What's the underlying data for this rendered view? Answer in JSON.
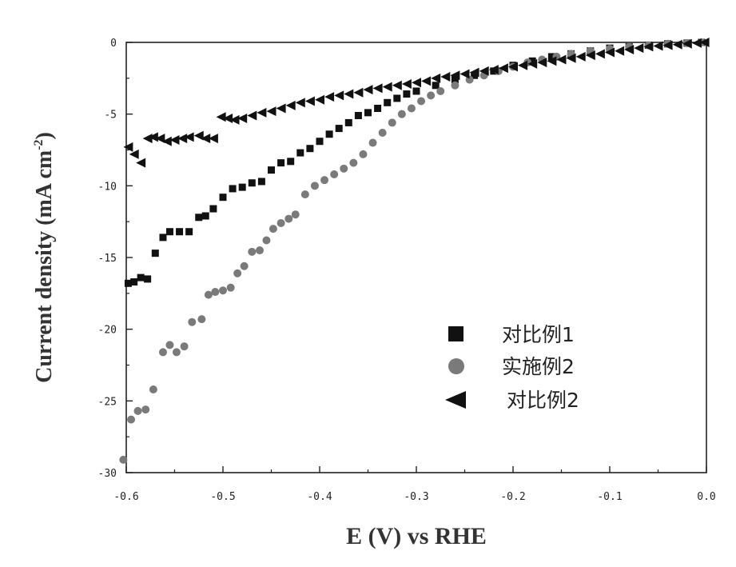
{
  "chart_data": {
    "type": "scatter",
    "title": "",
    "xlabel": "E (V) vs RHE",
    "ylabel": "Current density (mA cm",
    "ylabel_sup": "-2",
    "ylabel_close": ")",
    "xlim": [
      -0.6,
      0.0
    ],
    "ylim": [
      -30,
      0
    ],
    "x_ticks": [
      -0.6,
      -0.5,
      -0.4,
      -0.3,
      -0.2,
      -0.1,
      0.0
    ],
    "x_tick_labels": [
      "-0.6",
      "-0.5",
      "-0.4",
      "-0.3",
      "-0.2",
      "-0.1",
      "0.0"
    ],
    "y_ticks": [
      0,
      -5,
      -10,
      -15,
      -20,
      -25,
      -30
    ],
    "y_tick_labels": [
      "0",
      "-5",
      "-10",
      "-15",
      "-20",
      "-25",
      "-30"
    ],
    "legend_position": "bottom-right",
    "series": [
      {
        "name": "对比例1",
        "marker": "square",
        "color": "#111111",
        "points": [
          [
            -0.598,
            -16.8
          ],
          [
            -0.592,
            -16.7
          ],
          [
            -0.585,
            -16.4
          ],
          [
            -0.578,
            -16.5
          ],
          [
            -0.57,
            -14.7
          ],
          [
            -0.562,
            -13.6
          ],
          [
            -0.555,
            -13.2
          ],
          [
            -0.545,
            -13.2
          ],
          [
            -0.535,
            -13.2
          ],
          [
            -0.525,
            -12.2
          ],
          [
            -0.518,
            -12.1
          ],
          [
            -0.51,
            -11.6
          ],
          [
            -0.5,
            -10.8
          ],
          [
            -0.49,
            -10.2
          ],
          [
            -0.48,
            -10.1
          ],
          [
            -0.47,
            -9.8
          ],
          [
            -0.46,
            -9.7
          ],
          [
            -0.45,
            -8.9
          ],
          [
            -0.44,
            -8.4
          ],
          [
            -0.43,
            -8.3
          ],
          [
            -0.42,
            -7.7
          ],
          [
            -0.41,
            -7.4
          ],
          [
            -0.4,
            -6.9
          ],
          [
            -0.39,
            -6.4
          ],
          [
            -0.38,
            -6.0
          ],
          [
            -0.37,
            -5.6
          ],
          [
            -0.36,
            -5.1
          ],
          [
            -0.35,
            -4.9
          ],
          [
            -0.34,
            -4.6
          ],
          [
            -0.33,
            -4.2
          ],
          [
            -0.32,
            -3.9
          ],
          [
            -0.31,
            -3.6
          ],
          [
            -0.3,
            -3.4
          ],
          [
            -0.28,
            -3.0
          ],
          [
            -0.26,
            -2.6
          ],
          [
            -0.24,
            -2.3
          ],
          [
            -0.22,
            -2.0
          ],
          [
            -0.2,
            -1.6
          ],
          [
            -0.18,
            -1.3
          ],
          [
            -0.16,
            -1.0
          ],
          [
            -0.14,
            -0.8
          ],
          [
            -0.12,
            -0.6
          ],
          [
            -0.1,
            -0.4
          ],
          [
            -0.08,
            -0.3
          ],
          [
            -0.06,
            -0.2
          ],
          [
            -0.04,
            -0.1
          ],
          [
            -0.02,
            -0.05
          ],
          [
            -0.005,
            0.0
          ]
        ]
      },
      {
        "name": "实施例2",
        "marker": "circle",
        "color": "#7a7a7a",
        "points": [
          [
            -0.603,
            -29.1
          ],
          [
            -0.595,
            -26.3
          ],
          [
            -0.588,
            -25.7
          ],
          [
            -0.58,
            -25.6
          ],
          [
            -0.572,
            -24.2
          ],
          [
            -0.562,
            -21.6
          ],
          [
            -0.555,
            -21.1
          ],
          [
            -0.548,
            -21.6
          ],
          [
            -0.54,
            -21.2
          ],
          [
            -0.532,
            -19.5
          ],
          [
            -0.522,
            -19.3
          ],
          [
            -0.515,
            -17.6
          ],
          [
            -0.508,
            -17.4
          ],
          [
            -0.5,
            -17.3
          ],
          [
            -0.492,
            -17.1
          ],
          [
            -0.485,
            -16.1
          ],
          [
            -0.478,
            -15.6
          ],
          [
            -0.47,
            -14.6
          ],
          [
            -0.462,
            -14.5
          ],
          [
            -0.455,
            -13.8
          ],
          [
            -0.448,
            -13.0
          ],
          [
            -0.44,
            -12.6
          ],
          [
            -0.432,
            -12.3
          ],
          [
            -0.425,
            -12.0
          ],
          [
            -0.415,
            -10.6
          ],
          [
            -0.405,
            -10.0
          ],
          [
            -0.395,
            -9.6
          ],
          [
            -0.385,
            -9.2
          ],
          [
            -0.375,
            -8.8
          ],
          [
            -0.365,
            -8.4
          ],
          [
            -0.355,
            -7.8
          ],
          [
            -0.345,
            -7.0
          ],
          [
            -0.335,
            -6.3
          ],
          [
            -0.325,
            -5.6
          ],
          [
            -0.315,
            -5.0
          ],
          [
            -0.305,
            -4.6
          ],
          [
            -0.295,
            -4.1
          ],
          [
            -0.285,
            -3.7
          ],
          [
            -0.275,
            -3.4
          ],
          [
            -0.26,
            -3.0
          ],
          [
            -0.245,
            -2.6
          ],
          [
            -0.23,
            -2.3
          ],
          [
            -0.215,
            -2.0
          ],
          [
            -0.2,
            -1.7
          ],
          [
            -0.185,
            -1.4
          ],
          [
            -0.17,
            -1.2
          ],
          [
            -0.155,
            -1.0
          ],
          [
            -0.14,
            -0.8
          ],
          [
            -0.12,
            -0.6
          ],
          [
            -0.1,
            -0.45
          ],
          [
            -0.08,
            -0.3
          ],
          [
            -0.06,
            -0.2
          ],
          [
            -0.04,
            -0.1
          ],
          [
            -0.02,
            -0.05
          ],
          [
            -0.005,
            0.0
          ]
        ]
      },
      {
        "name": "对比例2",
        "marker": "triangle-left",
        "color": "#111111",
        "points": [
          [
            -0.598,
            -7.3
          ],
          [
            -0.592,
            -7.8
          ],
          [
            -0.585,
            -8.4
          ],
          [
            -0.578,
            -6.7
          ],
          [
            -0.572,
            -6.6
          ],
          [
            -0.565,
            -6.7
          ],
          [
            -0.558,
            -6.9
          ],
          [
            -0.55,
            -6.8
          ],
          [
            -0.542,
            -6.7
          ],
          [
            -0.535,
            -6.6
          ],
          [
            -0.525,
            -6.5
          ],
          [
            -0.518,
            -6.7
          ],
          [
            -0.51,
            -6.7
          ],
          [
            -0.502,
            -5.2
          ],
          [
            -0.495,
            -5.3
          ],
          [
            -0.488,
            -5.4
          ],
          [
            -0.48,
            -5.3
          ],
          [
            -0.47,
            -5.1
          ],
          [
            -0.46,
            -4.9
          ],
          [
            -0.45,
            -4.8
          ],
          [
            -0.44,
            -4.6
          ],
          [
            -0.43,
            -4.4
          ],
          [
            -0.42,
            -4.2
          ],
          [
            -0.41,
            -4.1
          ],
          [
            -0.4,
            -4.0
          ],
          [
            -0.39,
            -3.8
          ],
          [
            -0.38,
            -3.7
          ],
          [
            -0.37,
            -3.6
          ],
          [
            -0.36,
            -3.5
          ],
          [
            -0.35,
            -3.3
          ],
          [
            -0.34,
            -3.2
          ],
          [
            -0.33,
            -3.1
          ],
          [
            -0.32,
            -3.0
          ],
          [
            -0.31,
            -2.9
          ],
          [
            -0.3,
            -2.8
          ],
          [
            -0.29,
            -2.7
          ],
          [
            -0.28,
            -2.5
          ],
          [
            -0.27,
            -2.4
          ],
          [
            -0.26,
            -2.3
          ],
          [
            -0.25,
            -2.2
          ],
          [
            -0.24,
            -2.1
          ],
          [
            -0.23,
            -2.0
          ],
          [
            -0.22,
            -1.9
          ],
          [
            -0.21,
            -1.8
          ],
          [
            -0.2,
            -1.7
          ],
          [
            -0.19,
            -1.6
          ],
          [
            -0.18,
            -1.5
          ],
          [
            -0.17,
            -1.4
          ],
          [
            -0.16,
            -1.3
          ],
          [
            -0.15,
            -1.2
          ],
          [
            -0.14,
            -1.1
          ],
          [
            -0.13,
            -1.0
          ],
          [
            -0.12,
            -0.9
          ],
          [
            -0.11,
            -0.8
          ],
          [
            -0.1,
            -0.7
          ],
          [
            -0.09,
            -0.6
          ],
          [
            -0.08,
            -0.5
          ],
          [
            -0.07,
            -0.4
          ],
          [
            -0.06,
            -0.3
          ],
          [
            -0.05,
            -0.25
          ],
          [
            -0.04,
            -0.2
          ],
          [
            -0.03,
            -0.15
          ],
          [
            -0.02,
            -0.1
          ],
          [
            -0.01,
            -0.05
          ],
          [
            -0.002,
            0.0
          ]
        ]
      }
    ]
  }
}
